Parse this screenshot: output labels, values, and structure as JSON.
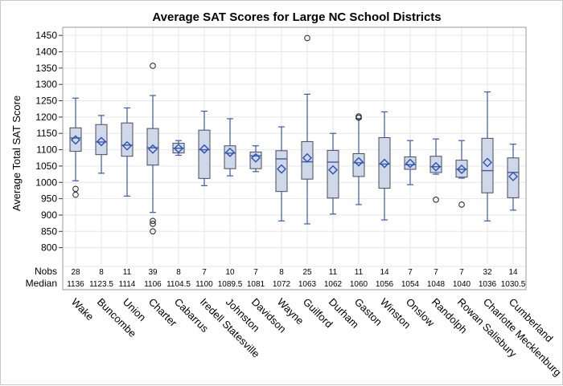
{
  "chart_data": {
    "type": "box",
    "title": "Average SAT Scores for Large NC School Districts",
    "xlabel": "",
    "ylabel": "Average Total SAT Score",
    "ylim": [
      750,
      1470
    ],
    "yticks": [
      800,
      850,
      900,
      950,
      1000,
      1050,
      1100,
      1150,
      1200,
      1250,
      1300,
      1350,
      1400,
      1450
    ],
    "grid": true,
    "stats_row_labels": [
      "Nobs",
      "Median"
    ],
    "categories": [
      "Wake",
      "Buncombe",
      "Union",
      "Charter",
      "Cabarrus",
      "Iredell Statesville",
      "Johnston",
      "Davidson",
      "Wayne",
      "Guilford",
      "Durham",
      "Gaston",
      "Winston",
      "Onslow",
      "Randolph",
      "Rowan Salisbury",
      "Charlotte Mecklenburg",
      "Cumberland"
    ],
    "nobs": [
      "28",
      "8",
      "11",
      "39",
      "8",
      "7",
      "10",
      "7",
      "8",
      "25",
      "11",
      "11",
      "14",
      "7",
      "7",
      "7",
      "32",
      "14"
    ],
    "median_labels": [
      "1136",
      "1123.5",
      "1114",
      "1106",
      "1104.5",
      "1100",
      "1089.5",
      "1081",
      "1072",
      "1063",
      "1062",
      "1060",
      "1056",
      "1054",
      "1048",
      "1040",
      "1036",
      "1030.5"
    ],
    "boxes": [
      {
        "min": 1005,
        "q1": 1095,
        "median": 1136,
        "q3": 1167,
        "max": 1258,
        "mean": 1130,
        "outliers": [
          980,
          962
        ]
      },
      {
        "min": 1028,
        "q1": 1085,
        "median": 1123.5,
        "q3": 1177,
        "max": 1205,
        "mean": 1125,
        "outliers": []
      },
      {
        "min": 958,
        "q1": 1080,
        "median": 1114,
        "q3": 1182,
        "max": 1228,
        "mean": 1112,
        "outliers": []
      },
      {
        "min": 908,
        "q1": 1053,
        "median": 1106,
        "q3": 1165,
        "max": 1266,
        "mean": 1102,
        "outliers": [
          1357,
          882,
          873,
          850
        ]
      },
      {
        "min": 1083,
        "q1": 1090,
        "median": 1104.5,
        "q3": 1120,
        "max": 1128,
        "mean": 1104,
        "outliers": []
      },
      {
        "min": 990,
        "q1": 1012,
        "median": 1100,
        "q3": 1160,
        "max": 1218,
        "mean": 1102,
        "outliers": []
      },
      {
        "min": 1020,
        "q1": 1042,
        "median": 1089.5,
        "q3": 1112,
        "max": 1195,
        "mean": 1092,
        "outliers": []
      },
      {
        "min": 1033,
        "q1": 1042,
        "median": 1081,
        "q3": 1093,
        "max": 1112,
        "mean": 1075,
        "outliers": []
      },
      {
        "min": 882,
        "q1": 972,
        "median": 1072,
        "q3": 1097,
        "max": 1170,
        "mean": 1041,
        "outliers": []
      },
      {
        "min": 873,
        "q1": 1010,
        "median": 1063,
        "q3": 1125,
        "max": 1270,
        "mean": 1075,
        "outliers": [
          1442
        ]
      },
      {
        "min": 903,
        "q1": 952,
        "median": 1062,
        "q3": 1098,
        "max": 1150,
        "mean": 1038,
        "outliers": []
      },
      {
        "min": 932,
        "q1": 1018,
        "median": 1060,
        "q3": 1088,
        "max": 1195,
        "mean": 1063,
        "outliers": [
          1202,
          1198
        ]
      },
      {
        "min": 885,
        "q1": 982,
        "median": 1056,
        "q3": 1137,
        "max": 1216,
        "mean": 1058,
        "outliers": []
      },
      {
        "min": 993,
        "q1": 1040,
        "median": 1054,
        "q3": 1078,
        "max": 1128,
        "mean": 1058,
        "outliers": []
      },
      {
        "min": 1025,
        "q1": 1030,
        "median": 1048,
        "q3": 1080,
        "max": 1133,
        "mean": 1048,
        "outliers": [
          947
        ]
      },
      {
        "min": 1013,
        "q1": 1016,
        "median": 1040,
        "q3": 1068,
        "max": 1128,
        "mean": 1040,
        "outliers": [
          932
        ]
      },
      {
        "min": 882,
        "q1": 968,
        "median": 1036,
        "q3": 1135,
        "max": 1277,
        "mean": 1061,
        "outliers": []
      },
      {
        "min": 915,
        "q1": 953,
        "median": 1030.5,
        "q3": 1075,
        "max": 1117,
        "mean": 1018,
        "outliers": []
      }
    ],
    "colors": {
      "box_fill": "#cfd8e8",
      "box_edge": "#4a4a5a",
      "whisker": "#3a5ba8",
      "median": "#3a5ba8",
      "mean": "#2850b4",
      "grid": "#e6e6e6",
      "frame": "#9a9a9a"
    }
  }
}
